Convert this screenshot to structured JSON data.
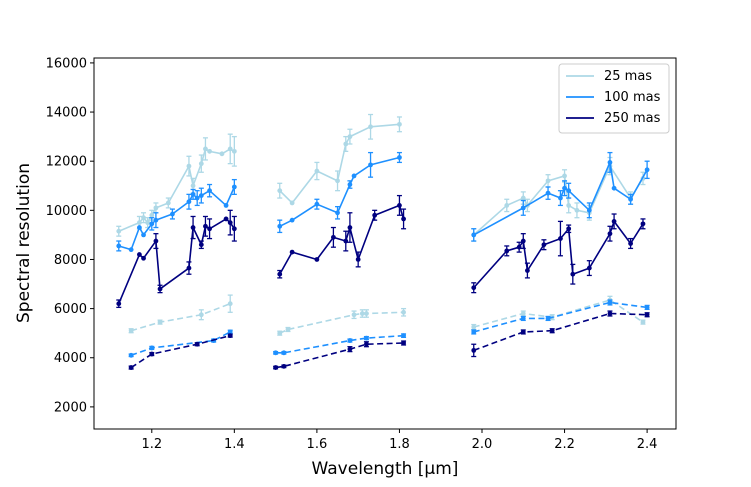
{
  "chart_data": {
    "type": "line",
    "title": "",
    "xlabel": "Wavelength [μm]",
    "ylabel": "Spectral resolution",
    "xlim": [
      1.06,
      2.47
    ],
    "ylim": [
      1100,
      16200
    ],
    "xticks": [
      1.2,
      1.4,
      1.6,
      1.8,
      2.0,
      2.2,
      2.4
    ],
    "xtick_labels": [
      "1.2",
      "1.4",
      "1.6",
      "1.8",
      "2.0",
      "2.2",
      "2.4"
    ],
    "yticks": [
      2000,
      4000,
      6000,
      8000,
      10000,
      12000,
      14000,
      16000
    ],
    "ytick_labels": [
      "2000",
      "4000",
      "6000",
      "8000",
      "10000",
      "12000",
      "14000",
      "16000"
    ],
    "legend_position": "top-right",
    "legend": [
      {
        "label": "25 mas",
        "color": "#add8e6"
      },
      {
        "label": "100 mas",
        "color": "#1e90ff"
      },
      {
        "label": "250 mas",
        "color": "#000080"
      }
    ],
    "series": [
      {
        "name": "25 mas",
        "band": "J",
        "style": "solid",
        "color": "#add8e6",
        "x": [
          1.12,
          1.17,
          1.18,
          1.19,
          1.2,
          1.21,
          1.24,
          1.29,
          1.3,
          1.32,
          1.33,
          1.34,
          1.37,
          1.39,
          1.4
        ],
        "y": [
          9150,
          9500,
          9700,
          9500,
          9800,
          10100,
          10300,
          11800,
          11000,
          11900,
          12500,
          12400,
          12300,
          12500,
          12400
        ],
        "err": [
          200,
          250,
          200,
          200,
          200,
          200,
          200,
          400,
          300,
          350,
          450,
          0,
          0,
          600,
          600
        ]
      },
      {
        "name": "25 mas",
        "band": "H",
        "style": "solid",
        "color": "#add8e6",
        "x": [
          1.51,
          1.54,
          1.6,
          1.65,
          1.67,
          1.68,
          1.73,
          1.8
        ],
        "y": [
          10800,
          10300,
          11600,
          11200,
          12700,
          13000,
          13400,
          13500
        ],
        "err": [
          300,
          0,
          350,
          400,
          300,
          300,
          500,
          300
        ]
      },
      {
        "name": "25 mas",
        "band": "K",
        "style": "solid",
        "color": "#add8e6",
        "x": [
          1.98,
          2.06,
          2.1,
          2.11,
          2.16,
          2.2,
          2.21,
          2.23,
          2.26,
          2.31,
          2.36,
          2.39
        ],
        "y": [
          9000,
          10200,
          10500,
          10200,
          11200,
          11400,
          10200,
          10000,
          9900,
          11800,
          10500,
          11300
        ],
        "err": [
          250,
          250,
          250,
          250,
          250,
          250,
          300,
          300,
          300,
          350,
          250,
          250
        ]
      },
      {
        "name": "25 mas",
        "band": "J",
        "style": "dashed",
        "color": "#add8e6",
        "x": [
          1.15,
          1.22,
          1.32,
          1.39
        ],
        "y": [
          5100,
          5450,
          5750,
          6200
        ],
        "err": [
          80,
          80,
          200,
          350
        ]
      },
      {
        "name": "25 mas",
        "band": "H",
        "style": "dashed",
        "color": "#add8e6",
        "x": [
          1.51,
          1.53,
          1.69,
          1.71,
          1.72,
          1.81
        ],
        "y": [
          5000,
          5150,
          5750,
          5800,
          5800,
          5850
        ],
        "err": [
          80,
          80,
          150,
          150,
          150,
          150
        ]
      },
      {
        "name": "25 mas",
        "band": "K",
        "style": "dashed",
        "color": "#add8e6",
        "x": [
          1.98,
          2.1,
          2.17,
          2.31,
          2.39
        ],
        "y": [
          5250,
          5800,
          5650,
          6350,
          5450
        ],
        "err": [
          100,
          100,
          100,
          150,
          80
        ]
      },
      {
        "name": "100 mas",
        "band": "J",
        "style": "solid",
        "color": "#1e90ff",
        "x": [
          1.12,
          1.15,
          1.17,
          1.18,
          1.2,
          1.21,
          1.25,
          1.29,
          1.3,
          1.31,
          1.32,
          1.34,
          1.38,
          1.4
        ],
        "y": [
          8550,
          8400,
          9300,
          9000,
          9450,
          9600,
          9850,
          10350,
          10650,
          10500,
          10600,
          10800,
          10200,
          10950
        ],
        "err": [
          200,
          0,
          0,
          0,
          250,
          300,
          200,
          300,
          200,
          300,
          300,
          250,
          0,
          300
        ]
      },
      {
        "name": "100 mas",
        "band": "H",
        "style": "solid",
        "color": "#1e90ff",
        "x": [
          1.51,
          1.54,
          1.6,
          1.65,
          1.68,
          1.69,
          1.73,
          1.8
        ],
        "y": [
          9350,
          9600,
          10250,
          9900,
          11050,
          11400,
          11850,
          12150
        ],
        "err": [
          250,
          0,
          200,
          250,
          150,
          0,
          500,
          200
        ]
      },
      {
        "name": "100 mas",
        "band": "K",
        "style": "solid",
        "color": "#1e90ff",
        "x": [
          1.98,
          2.1,
          2.16,
          2.19,
          2.2,
          2.21,
          2.26,
          2.31,
          2.32,
          2.36,
          2.4
        ],
        "y": [
          9000,
          10100,
          10700,
          10500,
          10900,
          10800,
          10000,
          11950,
          10900,
          10450,
          11650
        ],
        "err": [
          250,
          300,
          250,
          300,
          300,
          300,
          300,
          400,
          0,
          200,
          350
        ]
      },
      {
        "name": "100 mas",
        "band": "J",
        "style": "dashed",
        "color": "#1e90ff",
        "x": [
          1.15,
          1.2,
          1.35,
          1.39
        ],
        "y": [
          4100,
          4400,
          4700,
          5050
        ],
        "err": [
          50,
          60,
          60,
          70
        ]
      },
      {
        "name": "100 mas",
        "band": "H",
        "style": "dashed",
        "color": "#1e90ff",
        "x": [
          1.5,
          1.52,
          1.68,
          1.72,
          1.81
        ],
        "y": [
          4200,
          4200,
          4700,
          4800,
          4900
        ],
        "err": [
          50,
          50,
          60,
          60,
          70
        ]
      },
      {
        "name": "100 mas",
        "band": "K",
        "style": "dashed",
        "color": "#1e90ff",
        "x": [
          1.98,
          2.1,
          2.16,
          2.31,
          2.4
        ],
        "y": [
          5050,
          5600,
          5600,
          6250,
          6050
        ],
        "err": [
          80,
          80,
          80,
          100,
          80
        ]
      },
      {
        "name": "250 mas",
        "band": "J",
        "style": "solid",
        "color": "#000080",
        "x": [
          1.12,
          1.17,
          1.18,
          1.21,
          1.22,
          1.29,
          1.3,
          1.32,
          1.33,
          1.34,
          1.38,
          1.39,
          1.4
        ],
        "y": [
          6200,
          8200,
          8050,
          8750,
          6800,
          7650,
          9300,
          8600,
          9350,
          9250,
          9650,
          9500,
          9250
        ],
        "err": [
          150,
          0,
          0,
          300,
          150,
          250,
          450,
          150,
          400,
          400,
          0,
          500,
          500
        ]
      },
      {
        "name": "250 mas",
        "band": "H",
        "style": "solid",
        "color": "#000080",
        "x": [
          1.51,
          1.54,
          1.6,
          1.64,
          1.67,
          1.68,
          1.7,
          1.74,
          1.8,
          1.81
        ],
        "y": [
          7400,
          8300,
          8000,
          8900,
          8750,
          9300,
          8000,
          9800,
          10200,
          9650
        ],
        "err": [
          150,
          0,
          0,
          400,
          400,
          600,
          300,
          200,
          400,
          400
        ]
      },
      {
        "name": "250 mas",
        "band": "K",
        "style": "solid",
        "color": "#000080",
        "x": [
          1.98,
          2.06,
          2.09,
          2.1,
          2.11,
          2.15,
          2.19,
          2.21,
          2.22,
          2.26,
          2.31,
          2.32,
          2.36,
          2.39
        ],
        "y": [
          6850,
          8350,
          8500,
          8750,
          7550,
          8600,
          8850,
          9250,
          7400,
          7650,
          9050,
          9550,
          8650,
          9450
        ],
        "err": [
          200,
          200,
          200,
          300,
          300,
          200,
          700,
          150,
          400,
          300,
          300,
          300,
          200,
          200
        ]
      },
      {
        "name": "250 mas",
        "band": "J",
        "style": "dashed",
        "color": "#000080",
        "x": [
          1.15,
          1.2,
          1.31,
          1.39
        ],
        "y": [
          3600,
          4150,
          4550,
          4900
        ],
        "err": [
          60,
          60,
          60,
          60
        ]
      },
      {
        "name": "250 mas",
        "band": "H",
        "style": "dashed",
        "color": "#000080",
        "x": [
          1.5,
          1.52,
          1.68,
          1.72,
          1.81
        ],
        "y": [
          3600,
          3650,
          4350,
          4550,
          4600
        ],
        "err": [
          50,
          50,
          100,
          100,
          80
        ]
      },
      {
        "name": "250 mas",
        "band": "K",
        "style": "dashed",
        "color": "#000080",
        "x": [
          1.98,
          2.1,
          2.17,
          2.31,
          2.4
        ],
        "y": [
          4300,
          5050,
          5100,
          5800,
          5750
        ],
        "err": [
          250,
          80,
          80,
          100,
          80
        ]
      }
    ]
  }
}
